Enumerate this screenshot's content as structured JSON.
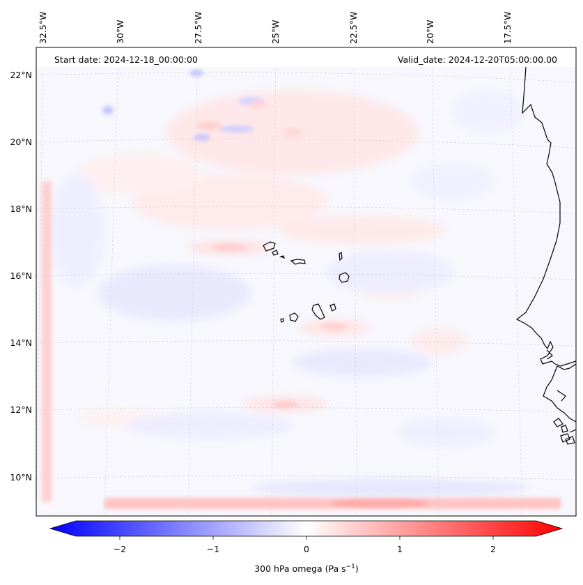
{
  "header": {
    "start_date": "Start date: 2024-12-18_00:00:00",
    "valid_date": "Valid_date: 2024-12-20T05:00:00.00"
  },
  "lon_labels": [
    "32.5°W",
    "30°W",
    "27.5°W",
    "25°W",
    "22.5°W",
    "20°W",
    "17.5°W"
  ],
  "lat_labels": [
    "22°N",
    "20°N",
    "18°N",
    "16°N",
    "14°N",
    "12°N",
    "10°N"
  ],
  "colorbar": {
    "ticks": [
      "−2",
      "−1",
      "0",
      "1",
      "2"
    ],
    "tick_values": [
      -2,
      -1,
      0,
      1,
      2
    ],
    "range": [
      -2.5,
      2.5
    ],
    "label": "300 hPa omega (Pa s",
    "label_sup": "−1",
    "label_end": ")",
    "colors": {
      "negative": "#0000ff",
      "zero": "#ffffff",
      "positive": "#ff0000"
    }
  }
}
